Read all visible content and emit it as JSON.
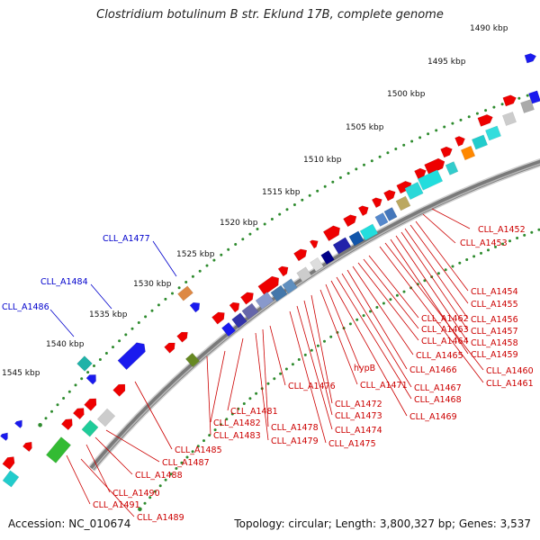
{
  "title": "Clostridium botulinum B str. Eklund 17B, complete genome",
  "accession": "Accession: NC_010674",
  "topology": "Topology: circular; Length: 3,800,327 bp; Genes: 3,537",
  "colors": {
    "backbone": "#7a7a7a",
    "tick_dots": "#2e8b2e",
    "label_red": "#cc0000",
    "label_blue": "#0000cc",
    "feature_red": "#ee0000",
    "feature_blue": "#1a1aee"
  },
  "scale_labels": [
    "1490 kbp",
    "1495 kbp",
    "1500 kbp",
    "1505 kbp",
    "1510 kbp",
    "1515 kbp",
    "1520 kbp",
    "1525 kbp",
    "1530 kbp",
    "1535 kbp",
    "1540 kbp",
    "1545 kbp"
  ],
  "outer_labels": [
    "CLL_A1477",
    "CLL_A1484",
    "CLL_A1486"
  ],
  "inner_labels": [
    "CLL_A1452",
    "CLL_A1453",
    "CLL_A1454",
    "CLL_A1455",
    "CLL_A1456",
    "CLL_A1457",
    "CLL_A1458",
    "CLL_A1459",
    "CLL_A1460",
    "CLL_A1461",
    "CLL_A1462",
    "CLL_A1463",
    "CLL_A1464",
    "CLL_A1465",
    "CLL_A1466",
    "CLL_A1467",
    "CLL_A1468",
    "CLL_A1469",
    "hypB",
    "CLL_A1471",
    "CLL_A1472",
    "CLL_A1473",
    "CLL_A1474",
    "CLL_A1475",
    "CLL_A1476",
    "CLL_A1478",
    "CLL_A1479",
    "CLL_A1481",
    "CLL_A1482",
    "CLL_A1483",
    "CLL_A1485",
    "CLL_A1487",
    "CLL_A1488",
    "CLL_A1490",
    "CLL_A1491",
    "CLL_A1489"
  ]
}
